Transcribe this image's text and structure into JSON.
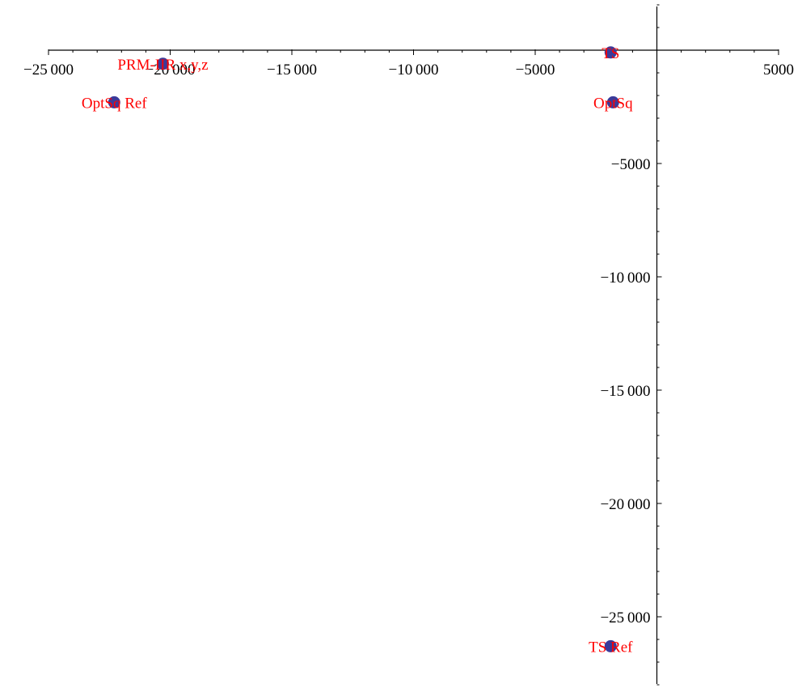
{
  "chart_data": {
    "type": "scatter",
    "title": "",
    "xlabel": "",
    "ylabel": "",
    "xlim": [
      -25000,
      5000
    ],
    "ylim": [
      -28000,
      2000
    ],
    "grid": false,
    "x_ticks": [
      {
        "value": -25000,
        "label": "−25 000"
      },
      {
        "value": -20000,
        "label": "−20 000"
      },
      {
        "value": -15000,
        "label": "−15 000"
      },
      {
        "value": -10000,
        "label": "−10 000"
      },
      {
        "value": -5000,
        "label": "−5000"
      },
      {
        "value": 5000,
        "label": "5000"
      }
    ],
    "y_ticks": [
      {
        "value": -5000,
        "label": "−5000"
      },
      {
        "value": -10000,
        "label": "−10 000"
      },
      {
        "value": -15000,
        "label": "−15 000"
      },
      {
        "value": -20000,
        "label": "−20 000"
      },
      {
        "value": -25000,
        "label": "−25 000"
      }
    ],
    "points": [
      {
        "label": "TS",
        "x": -1900,
        "y": -100
      },
      {
        "label": "OptSq",
        "x": -1800,
        "y": -2300
      },
      {
        "label": "PRM-IIR x,y,z",
        "x": -20300,
        "y": -600
      },
      {
        "label": "OptSq Ref",
        "x": -22300,
        "y": -2300
      },
      {
        "label": "TS Ref",
        "x": -1900,
        "y": -26300
      }
    ],
    "colors": {
      "marker": "#3a3a9a",
      "label": "#ff0000",
      "axis": "#000000"
    }
  }
}
